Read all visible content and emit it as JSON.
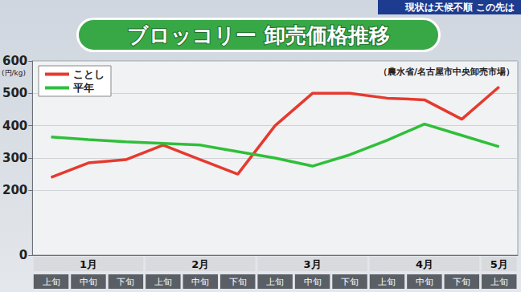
{
  "chart_data": {
    "type": "line",
    "header": "現状は天候不順 この先は",
    "title": "ブロッコリー 卸売価格推移",
    "source": "（農水省/名古屋市中央卸売市場）",
    "ylabel": "(円/kg)",
    "categories": [
      "上旬",
      "中旬",
      "下旬",
      "上旬",
      "中旬",
      "下旬",
      "上旬",
      "中旬",
      "下旬",
      "上旬",
      "中旬",
      "下旬",
      "上旬"
    ],
    "category_groups": [
      {
        "label": "1月",
        "span": 3
      },
      {
        "label": "2月",
        "span": 3
      },
      {
        "label": "3月",
        "span": 3
      },
      {
        "label": "4月",
        "span": 3
      },
      {
        "label": "5月",
        "span": 1
      }
    ],
    "series": [
      {
        "name": "ことし",
        "color": "#e53a2f",
        "values": [
          240,
          285,
          295,
          340,
          295,
          250,
          400,
          500,
          500,
          485,
          480,
          420,
          520
        ]
      },
      {
        "name": "平年",
        "color": "#2fbf3a",
        "values": [
          365,
          357,
          350,
          345,
          340,
          320,
          300,
          275,
          310,
          355,
          405,
          370,
          335
        ]
      }
    ],
    "ylim": [
      0,
      600
    ],
    "yticks": [
      0,
      200,
      300,
      400,
      500,
      600
    ],
    "grid": true,
    "legend": "upper left"
  }
}
